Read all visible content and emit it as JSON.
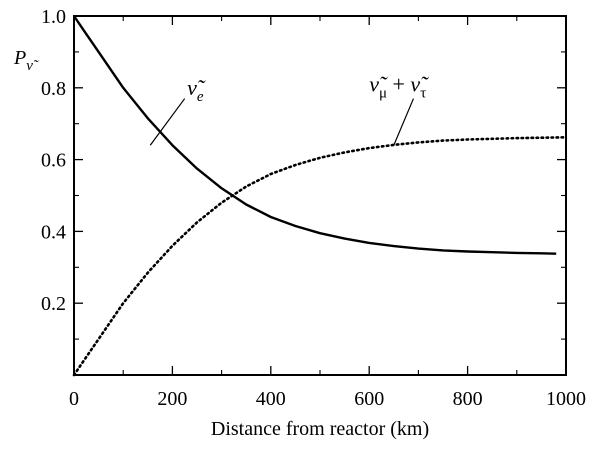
{
  "chart_data": {
    "type": "line",
    "title": "",
    "xlabel": "Distance from reactor  (km)",
    "ylabel": {
      "main": "P",
      "sub": "ν̃"
    },
    "xlim": [
      0,
      1000
    ],
    "ylim": [
      0,
      1.0
    ],
    "xticks": [
      {
        "value": 0,
        "label": "0"
      },
      {
        "value": 200,
        "label": "200"
      },
      {
        "value": 400,
        "label": "400"
      },
      {
        "value": 600,
        "label": "600"
      },
      {
        "value": 800,
        "label": "800"
      },
      {
        "value": 1000,
        "label": "1000"
      }
    ],
    "yticks": [
      {
        "value": 0.2,
        "label": "0.2"
      },
      {
        "value": 0.4,
        "label": "0.4"
      },
      {
        "value": 0.6,
        "label": "0.6"
      },
      {
        "value": 0.8,
        "label": "0.8"
      },
      {
        "value": 1.0,
        "label": "1.0"
      }
    ],
    "grid": false,
    "legend": "none",
    "series": [
      {
        "style": "solid",
        "color": "#000000",
        "x": [
          0,
          20,
          50,
          100,
          150,
          200,
          250,
          300,
          350,
          400,
          450,
          500,
          550,
          600,
          650,
          700,
          750,
          800,
          850,
          900,
          950,
          980
        ],
        "y": [
          1.0,
          0.96,
          0.9,
          0.8,
          0.715,
          0.64,
          0.575,
          0.52,
          0.475,
          0.44,
          0.415,
          0.395,
          0.38,
          0.368,
          0.359,
          0.352,
          0.347,
          0.344,
          0.342,
          0.34,
          0.339,
          0.338
        ]
      },
      {
        "style": "dotted",
        "color": "#000000",
        "x": [
          0,
          20,
          50,
          100,
          150,
          200,
          250,
          300,
          350,
          400,
          450,
          500,
          550,
          600,
          650,
          700,
          750,
          800,
          850,
          900,
          950,
          1000
        ],
        "y": [
          0.0,
          0.04,
          0.1,
          0.2,
          0.285,
          0.36,
          0.425,
          0.48,
          0.525,
          0.56,
          0.585,
          0.605,
          0.62,
          0.632,
          0.641,
          0.648,
          0.653,
          0.656,
          0.658,
          0.66,
          0.661,
          0.662
        ]
      }
    ],
    "annotations": [
      {
        "id": "nu-e",
        "base": "ν̃",
        "sub": "e",
        "x": 230,
        "y": 0.78,
        "leader": {
          "x1": 225,
          "y1": 0.77,
          "x2": 155,
          "y2": 0.64
        }
      },
      {
        "id": "nu-mu-tau",
        "parts": [
          "ν̃",
          "μ",
          " + ",
          "ν̃",
          "τ"
        ],
        "x": 600,
        "y": 0.79,
        "leader": {
          "x1": 690,
          "y1": 0.77,
          "x2": 650,
          "y2": 0.64
        }
      }
    ]
  }
}
